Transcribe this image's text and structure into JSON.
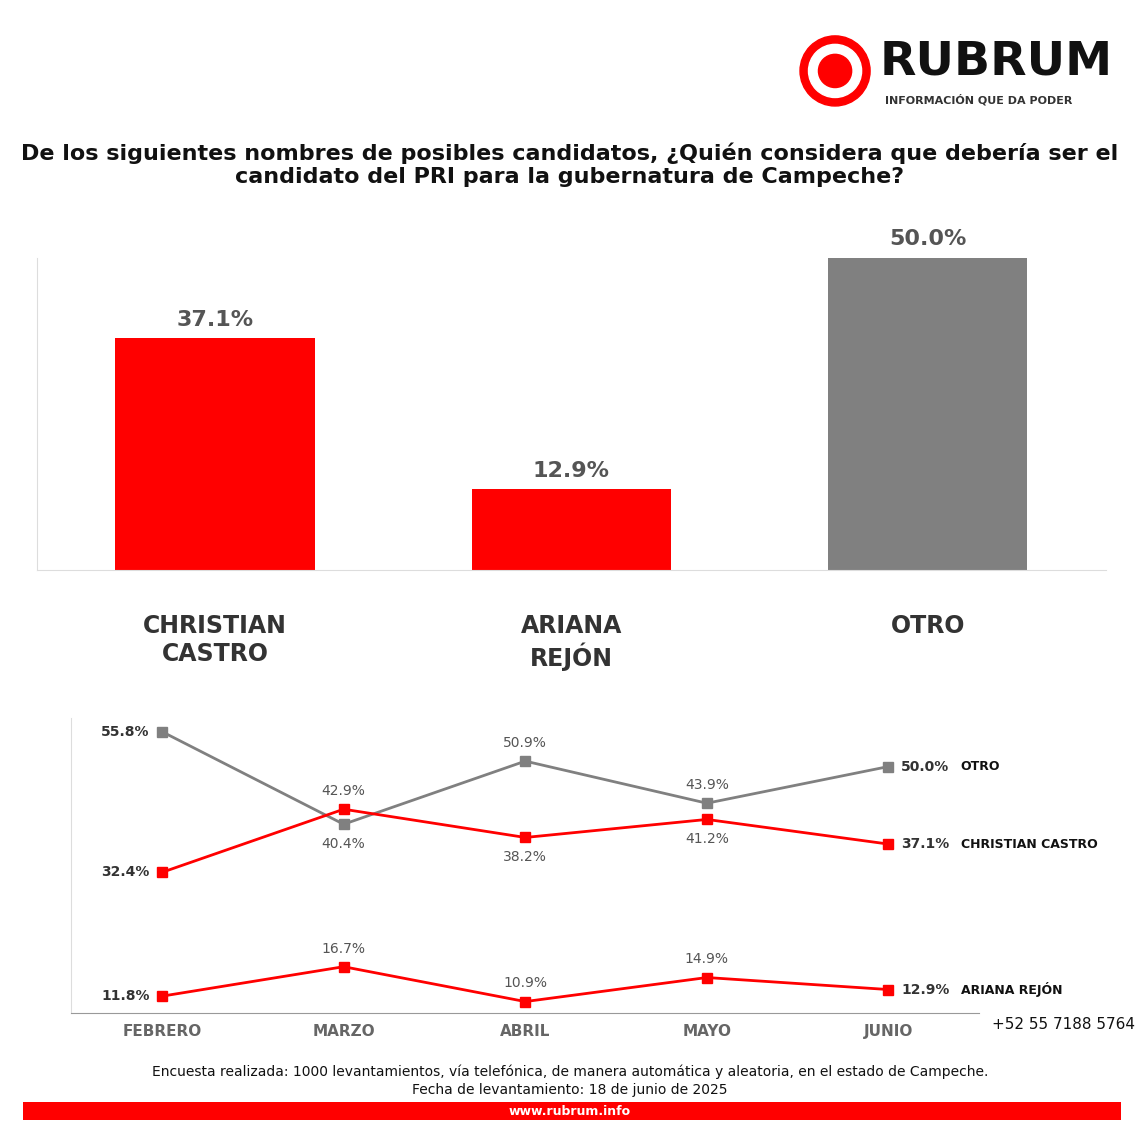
{
  "brand": "RUBRUM",
  "tagline": "INFORMACIÓN QUE DA PODER",
  "chart_data": [
    {
      "type": "bar",
      "title": "De los siguientes nombres de posibles candidatos, ¿Quién considera que debería ser el candidato del PRI para la gubernatura de Campeche?",
      "categories": [
        "CHRISTIAN\nCASTRO",
        "ARIANA\nREJÓN",
        "OTRO"
      ],
      "values": [
        37.1,
        12.9,
        50.0
      ],
      "value_labels": [
        "37.1%",
        "12.9%",
        "50.0%"
      ],
      "colors": [
        "#ff0000",
        "#ff0000",
        "#808080"
      ],
      "ylim": [
        0,
        50
      ],
      "data_labels": true,
      "tick_labels": "x",
      "grid": false
    },
    {
      "type": "line",
      "categories": [
        "FEBRERO",
        "MARZO",
        "ABRIL",
        "MAYO",
        "JUNIO"
      ],
      "series": [
        {
          "name": "OTRO",
          "color": "#808080",
          "marker": "square",
          "line_style": "solid",
          "values": [
            55.8,
            40.4,
            50.9,
            43.9,
            50.0
          ],
          "value_labels": [
            "55.8%",
            "40.4%",
            "50.9%",
            "43.9%",
            "50.0%"
          ]
        },
        {
          "name": "CHRISTIAN CASTRO",
          "color": "#ff0000",
          "marker": "square",
          "line_style": "solid",
          "values": [
            32.4,
            42.9,
            38.2,
            41.2,
            37.1
          ],
          "value_labels": [
            "32.4%",
            "42.9%",
            "38.2%",
            "41.2%",
            "37.1%"
          ]
        },
        {
          "name": "ARIANA REJÓN",
          "color": "#ff0000",
          "marker": "square",
          "line_style": "solid",
          "values": [
            11.8,
            16.7,
            10.9,
            14.9,
            12.9
          ],
          "value_labels": [
            "11.8%",
            "16.7%",
            "10.9%",
            "14.9%",
            "12.9%"
          ]
        }
      ],
      "ylim": [
        9,
        58
      ],
      "data_labels": true,
      "tick_labels": "x",
      "grid": false
    }
  ],
  "footer": {
    "note": "Encuesta realizada: 1000 levantamientos, vía telefónica, de manera automática y aleatoria, en el estado de Campeche.",
    "date": "Fecha de levantamiento: 18 de junio de 2025",
    "website": "www.rubrum.info",
    "phone": "+52 55 7188 5764"
  }
}
